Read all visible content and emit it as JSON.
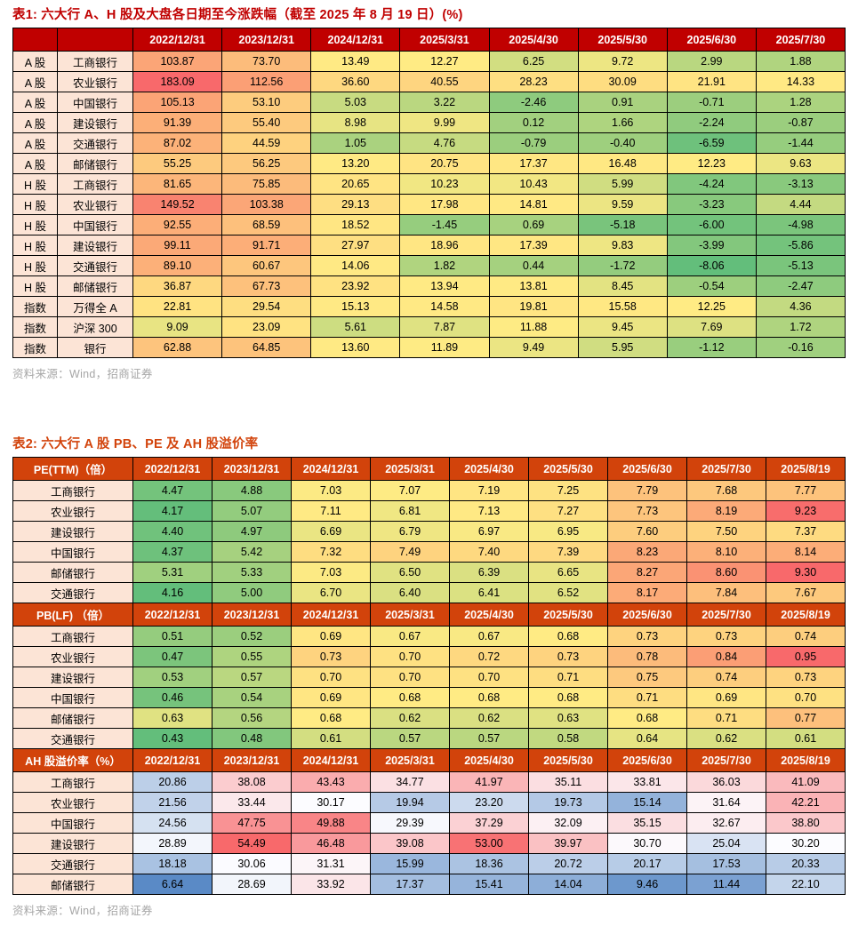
{
  "colors": {
    "table1_header_bg": "#C00000",
    "table2_header_bg": "#D2430B",
    "label_cell_bg": "#FCE4D6",
    "title1_color": "#C00000",
    "title2_color": "#D2430B",
    "source_color": "#A6A6A6",
    "scale_ryg": [
      "#63BE7B",
      "#FFEB84",
      "#F8696B"
    ],
    "scale_bwr": [
      "#5A8AC6",
      "#FCFCFF",
      "#F8696B"
    ]
  },
  "table1": {
    "title": "表1: 六大行 A、H 股及大盘各日期至今涨跌幅（截至 2025 年 8 月 19 日）(%)",
    "columns": [
      "2022/12/31",
      "2023/12/31",
      "2024/12/31",
      "2025/3/31",
      "2025/4/30",
      "2025/5/30",
      "2025/6/30",
      "2025/7/30"
    ],
    "rows": [
      {
        "group": "A 股",
        "name": "工商银行",
        "values": [
          103.87,
          73.7,
          13.49,
          12.27,
          6.25,
          9.72,
          2.99,
          1.88
        ]
      },
      {
        "group": "A 股",
        "name": "农业银行",
        "values": [
          183.09,
          112.56,
          36.6,
          40.55,
          28.23,
          30.09,
          21.91,
          14.33
        ]
      },
      {
        "group": "A 股",
        "name": "中国银行",
        "values": [
          105.13,
          53.1,
          5.03,
          3.22,
          -2.46,
          0.91,
          -0.71,
          1.28
        ]
      },
      {
        "group": "A 股",
        "name": "建设银行",
        "values": [
          91.39,
          55.4,
          8.98,
          9.99,
          0.12,
          1.66,
          -2.24,
          -0.87
        ]
      },
      {
        "group": "A 股",
        "name": "交通银行",
        "values": [
          87.02,
          44.59,
          1.05,
          4.76,
          -0.79,
          -0.4,
          -6.59,
          -1.44
        ]
      },
      {
        "group": "A 股",
        "name": "邮储银行",
        "values": [
          55.25,
          56.25,
          13.2,
          20.75,
          17.37,
          16.48,
          12.23,
          9.63
        ]
      },
      {
        "group": "H 股",
        "name": "工商银行",
        "values": [
          81.65,
          75.85,
          20.65,
          10.23,
          10.43,
          5.99,
          -4.24,
          -3.13
        ]
      },
      {
        "group": "H 股",
        "name": "农业银行",
        "values": [
          149.52,
          103.38,
          29.13,
          17.98,
          14.81,
          9.59,
          -3.23,
          4.44
        ]
      },
      {
        "group": "H 股",
        "name": "中国银行",
        "values": [
          92.55,
          68.59,
          18.52,
          -1.45,
          0.69,
          -5.18,
          -6.0,
          -4.98
        ]
      },
      {
        "group": "H 股",
        "name": "建设银行",
        "values": [
          99.11,
          91.71,
          27.97,
          18.96,
          17.39,
          9.83,
          -3.99,
          -5.86
        ]
      },
      {
        "group": "H 股",
        "name": "交通银行",
        "values": [
          89.1,
          60.67,
          14.06,
          1.82,
          0.44,
          -1.72,
          -8.06,
          -5.13
        ]
      },
      {
        "group": "H 股",
        "name": "邮储银行",
        "values": [
          36.87,
          67.73,
          23.92,
          13.94,
          13.81,
          8.45,
          -0.54,
          -2.47
        ]
      },
      {
        "group": "指数",
        "name": "万得全 A",
        "values": [
          22.81,
          29.54,
          15.13,
          14.58,
          19.81,
          15.58,
          12.25,
          4.36
        ]
      },
      {
        "group": "指数",
        "name": "沪深 300",
        "values": [
          9.09,
          23.09,
          5.61,
          7.87,
          11.88,
          9.45,
          7.69,
          1.72
        ]
      },
      {
        "group": "指数",
        "name": "银行",
        "values": [
          62.88,
          64.85,
          13.6,
          11.89,
          9.49,
          5.95,
          -1.12,
          -0.16
        ]
      }
    ],
    "source": "资料来源：Wind，招商证券"
  },
  "table2": {
    "title": "表2: 六大行 A 股 PB、PE 及 AH 股溢价率",
    "columns": [
      "2022/12/31",
      "2023/12/31",
      "2024/12/31",
      "2025/3/31",
      "2025/4/30",
      "2025/5/30",
      "2025/6/30",
      "2025/7/30",
      "2025/8/19"
    ],
    "sections": [
      {
        "label": "PE(TTM)（倍）",
        "scale": "ryg",
        "rows": [
          {
            "name": "工商银行",
            "values": [
              4.47,
              4.88,
              7.03,
              7.07,
              7.19,
              7.25,
              7.79,
              7.68,
              7.77
            ]
          },
          {
            "name": "农业银行",
            "values": [
              4.17,
              5.07,
              7.11,
              6.81,
              7.13,
              7.27,
              7.73,
              8.19,
              9.23
            ]
          },
          {
            "name": "建设银行",
            "values": [
              4.4,
              4.97,
              6.69,
              6.79,
              6.97,
              6.95,
              7.6,
              7.5,
              7.37
            ]
          },
          {
            "name": "中国银行",
            "values": [
              4.37,
              5.42,
              7.32,
              7.49,
              7.4,
              7.39,
              8.23,
              8.1,
              8.14
            ]
          },
          {
            "name": "邮储银行",
            "values": [
              5.31,
              5.33,
              7.03,
              6.5,
              6.39,
              6.65,
              8.27,
              8.6,
              9.3
            ]
          },
          {
            "name": "交通银行",
            "values": [
              4.16,
              5.0,
              6.7,
              6.4,
              6.41,
              6.52,
              8.17,
              7.84,
              7.67
            ]
          }
        ]
      },
      {
        "label": "PB(LF) （倍）",
        "scale": "ryg",
        "rows": [
          {
            "name": "工商银行",
            "values": [
              0.51,
              0.52,
              0.69,
              0.67,
              0.67,
              0.68,
              0.73,
              0.73,
              0.74
            ]
          },
          {
            "name": "农业银行",
            "values": [
              0.47,
              0.55,
              0.73,
              0.7,
              0.72,
              0.73,
              0.78,
              0.84,
              0.95
            ]
          },
          {
            "name": "建设银行",
            "values": [
              0.53,
              0.57,
              0.7,
              0.7,
              0.7,
              0.71,
              0.75,
              0.74,
              0.73
            ]
          },
          {
            "name": "中国银行",
            "values": [
              0.46,
              0.54,
              0.69,
              0.68,
              0.68,
              0.68,
              0.71,
              0.69,
              0.7
            ]
          },
          {
            "name": "邮储银行",
            "values": [
              0.63,
              0.56,
              0.68,
              0.62,
              0.62,
              0.63,
              0.68,
              0.71,
              0.77
            ]
          },
          {
            "name": "交通银行",
            "values": [
              0.43,
              0.48,
              0.61,
              0.57,
              0.57,
              0.58,
              0.64,
              0.62,
              0.61
            ]
          }
        ]
      },
      {
        "label": "AH 股溢价率（%）",
        "scale": "bwr",
        "rows": [
          {
            "name": "工商银行",
            "values": [
              20.86,
              38.08,
              43.43,
              34.77,
              41.97,
              35.11,
              33.81,
              36.03,
              41.09
            ]
          },
          {
            "name": "农业银行",
            "values": [
              21.56,
              33.44,
              30.17,
              19.94,
              23.2,
              19.73,
              15.14,
              31.64,
              42.21
            ]
          },
          {
            "name": "中国银行",
            "values": [
              24.56,
              47.75,
              49.88,
              29.39,
              37.29,
              32.09,
              35.15,
              32.67,
              38.8
            ]
          },
          {
            "name": "建设银行",
            "values": [
              28.89,
              54.49,
              46.48,
              39.08,
              53.0,
              39.97,
              30.7,
              25.04,
              30.2
            ]
          },
          {
            "name": "交通银行",
            "values": [
              18.18,
              30.06,
              31.31,
              15.99,
              18.36,
              20.72,
              20.17,
              17.53,
              20.33
            ]
          },
          {
            "name": "邮储银行",
            "values": [
              6.64,
              28.69,
              33.92,
              17.37,
              15.41,
              14.04,
              9.46,
              11.44,
              22.1
            ]
          }
        ]
      }
    ],
    "source": "资料来源：Wind，招商证券"
  }
}
